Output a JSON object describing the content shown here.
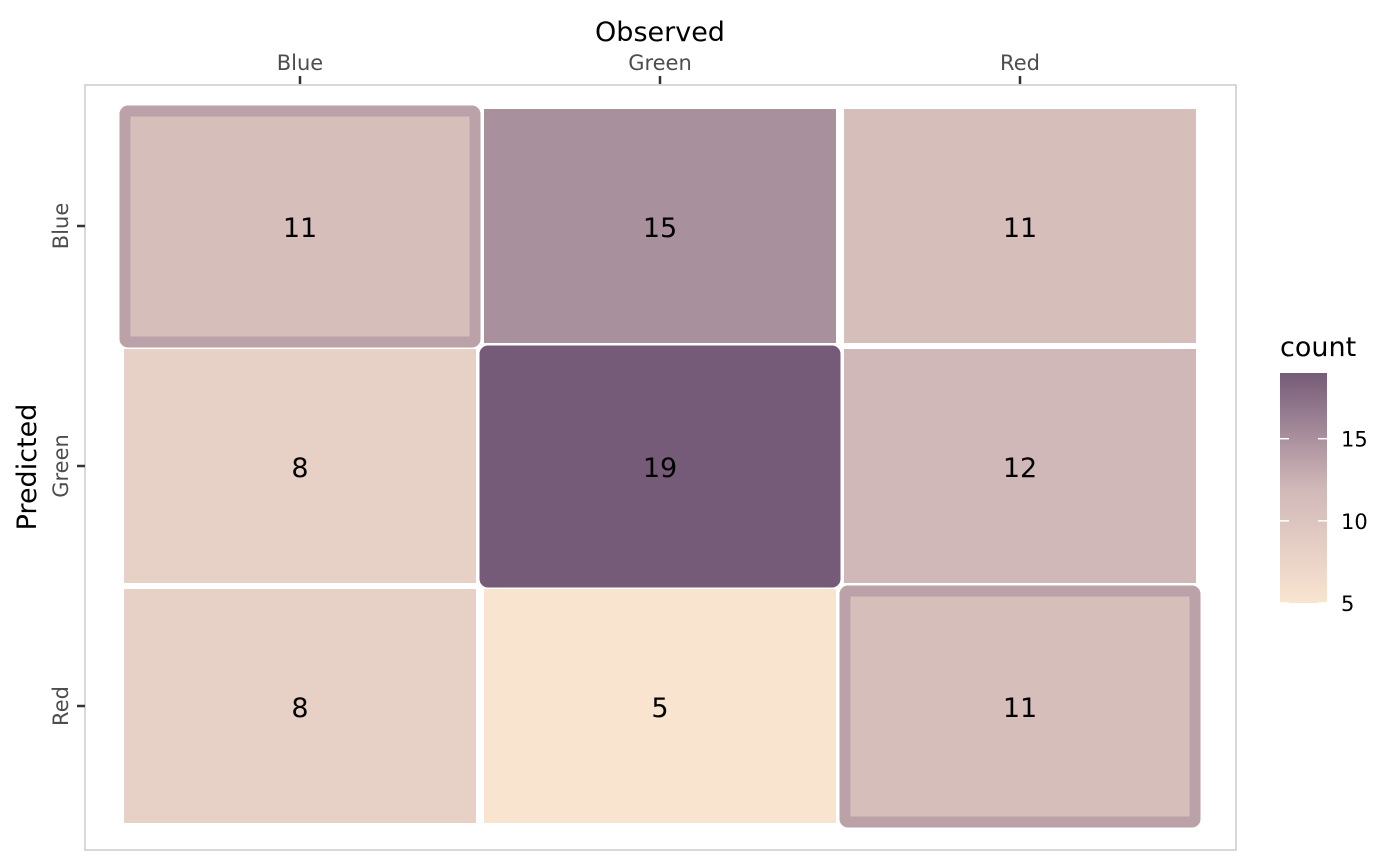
{
  "chart_data": {
    "type": "heatmap",
    "title": "",
    "xlabel": "Observed",
    "ylabel": "Predicted",
    "x_categories": [
      "Blue",
      "Green",
      "Red"
    ],
    "y_categories": [
      "Blue",
      "Green",
      "Red"
    ],
    "x_axis_position": "top",
    "values": [
      [
        11,
        15,
        11
      ],
      [
        8,
        19,
        12
      ],
      [
        8,
        5,
        11
      ]
    ],
    "diagonal_highlighted": true,
    "legend": {
      "title": "count",
      "position": "right",
      "ticks": [
        5,
        10,
        15
      ],
      "range": [
        5,
        19
      ]
    },
    "colors": {
      "low": "#f9e4d0",
      "mid": "#d0b8b8",
      "high": "#765b78"
    },
    "grid": false
  }
}
